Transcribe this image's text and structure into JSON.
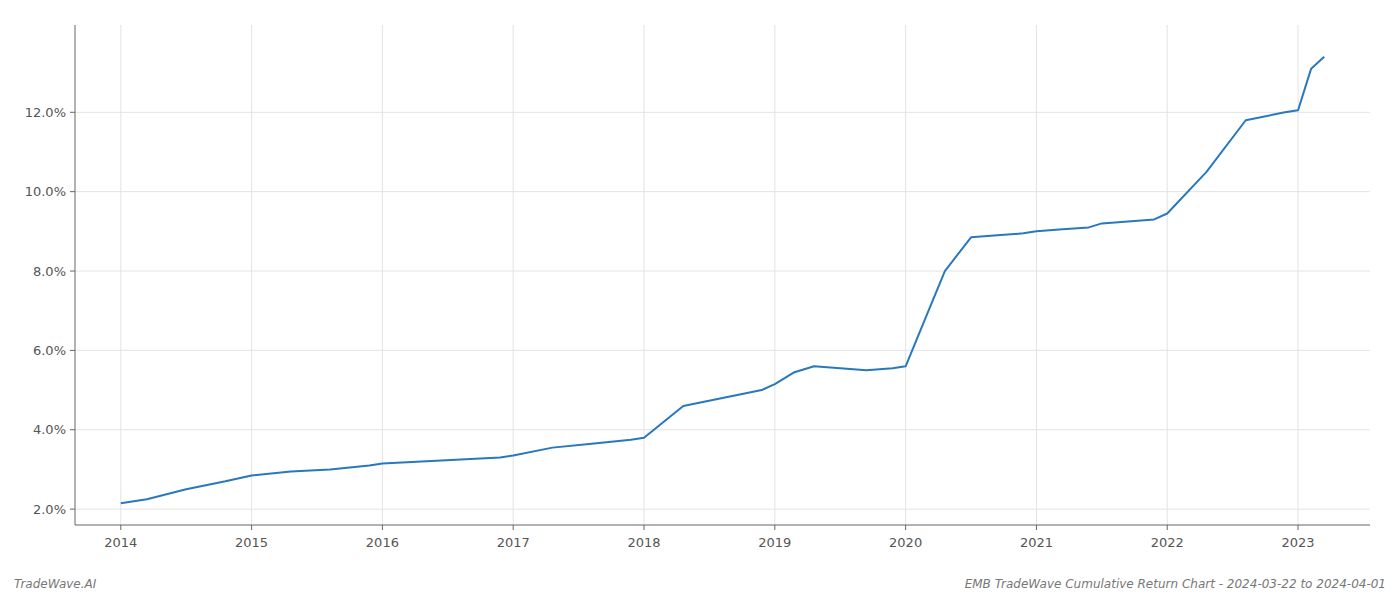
{
  "chart_data": {
    "type": "line",
    "x": [
      2014.0,
      2014.2,
      2014.5,
      2014.8,
      2015.0,
      2015.3,
      2015.6,
      2015.9,
      2016.0,
      2016.3,
      2016.6,
      2016.9,
      2017.0,
      2017.3,
      2017.6,
      2017.9,
      2018.0,
      2018.3,
      2018.6,
      2018.9,
      2019.0,
      2019.15,
      2019.3,
      2019.5,
      2019.7,
      2019.9,
      2020.0,
      2020.15,
      2020.3,
      2020.5,
      2020.7,
      2020.9,
      2021.0,
      2021.2,
      2021.4,
      2021.5,
      2021.7,
      2021.9,
      2022.0,
      2022.3,
      2022.6,
      2022.9,
      2023.0,
      2023.1,
      2023.2
    ],
    "values": [
      2.15,
      2.25,
      2.5,
      2.7,
      2.85,
      2.95,
      3.0,
      3.1,
      3.15,
      3.2,
      3.25,
      3.3,
      3.35,
      3.55,
      3.65,
      3.75,
      3.8,
      4.6,
      4.8,
      5.0,
      5.15,
      5.45,
      5.6,
      5.55,
      5.5,
      5.55,
      5.6,
      6.8,
      8.0,
      8.85,
      8.9,
      8.95,
      9.0,
      9.05,
      9.1,
      9.2,
      9.25,
      9.3,
      9.45,
      10.5,
      11.8,
      12.0,
      12.05,
      13.1,
      13.4
    ],
    "color": "#2878bd",
    "xlim": [
      2013.65,
      2023.55
    ],
    "xticks": [
      2014,
      2015,
      2016,
      2017,
      2018,
      2019,
      2020,
      2021,
      2022,
      2023
    ],
    "ylim": [
      1.6,
      14.2
    ],
    "yticks": [
      {
        "value": 2.0,
        "label": "2.0%"
      },
      {
        "value": 4.0,
        "label": "4.0%"
      },
      {
        "value": 6.0,
        "label": "6.0%"
      },
      {
        "value": 8.0,
        "label": "8.0%"
      },
      {
        "value": 10.0,
        "label": "10.0%"
      },
      {
        "value": 12.0,
        "label": "12.0%"
      }
    ],
    "grid": true,
    "annotations": [
      "TradeWave.AI",
      "EMB TradeWave Cumulative Return Chart - 2024-03-22 to 2024-04-01"
    ]
  }
}
